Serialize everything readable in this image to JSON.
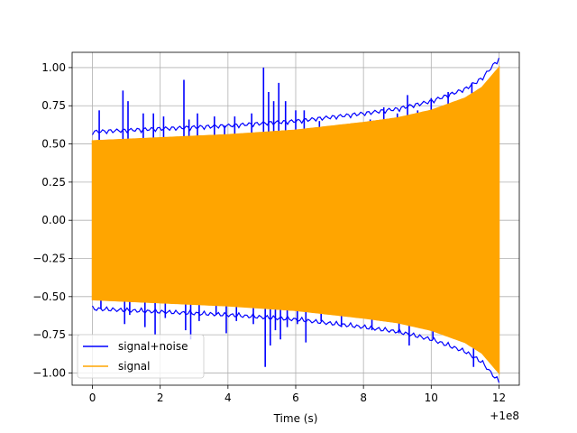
{
  "chart_data": {
    "type": "line",
    "title": "",
    "xlabel": "Time (s)",
    "ylabel": "",
    "x_offset_label": "+1e8",
    "xlim": [
      -0.6,
      12.6
    ],
    "ylim": [
      -1.08,
      1.1
    ],
    "x_ticks": [
      0,
      2,
      4,
      6,
      8,
      10,
      12
    ],
    "x_tick_labels": [
      "0",
      "2",
      "4",
      "6",
      "8",
      "10",
      "12"
    ],
    "y_ticks": [
      -1.0,
      -0.75,
      -0.5,
      -0.25,
      0.0,
      0.25,
      0.5,
      0.75,
      1.0
    ],
    "y_tick_labels": [
      "−1.00",
      "−0.75",
      "−0.50",
      "−0.25",
      "0.00",
      "0.25",
      "0.50",
      "0.75",
      "1.00"
    ],
    "grid": true,
    "legend_position": "lower-left",
    "series": [
      {
        "name": "signal+noise",
        "color": "#0000ff",
        "x_range": [
          0,
          12
        ],
        "y_range": [
          -0.96,
          1.0
        ],
        "description": "oscillating signal with noise spikes"
      },
      {
        "name": "signal",
        "color": "#ffa500",
        "x_range": [
          0,
          12
        ],
        "envelope": {
          "x": [
            0,
            2,
            4,
            6,
            8,
            9,
            10,
            11,
            11.5,
            12
          ],
          "amplitude": [
            0.52,
            0.54,
            0.56,
            0.59,
            0.64,
            0.67,
            0.72,
            0.8,
            0.87,
            1.0
          ]
        }
      }
    ],
    "noise_spikes": {
      "x": [
        0.2,
        0.9,
        1.05,
        1.5,
        1.8,
        2.1,
        2.7,
        2.85,
        3.1,
        3.6,
        3.9,
        4.2,
        4.7,
        5.05,
        5.2,
        5.35,
        5.5,
        5.7,
        6.0,
        6.25,
        6.7,
        7.3,
        7.6,
        8.2,
        8.6,
        9.0,
        9.3,
        9.6,
        10.0,
        10.5,
        11.2
      ],
      "y": [
        0.72,
        0.85,
        0.78,
        0.7,
        0.7,
        0.68,
        0.92,
        0.66,
        0.7,
        0.68,
        0.62,
        0.68,
        0.7,
        1.0,
        0.84,
        0.78,
        0.9,
        0.78,
        0.72,
        0.72,
        0.65,
        0.58,
        0.62,
        0.66,
        0.74,
        0.7,
        0.82,
        0.72,
        0.8,
        0.84,
        0.9
      ],
      "y_low": [
        -0.58,
        -0.68,
        -0.62,
        -0.7,
        -0.75,
        -0.64,
        -0.72,
        -0.78,
        -0.66,
        -0.62,
        -0.74,
        -0.66,
        -0.68,
        -0.96,
        -0.82,
        -0.72,
        -0.78,
        -0.7,
        -0.68,
        -0.8,
        -0.66,
        -0.7,
        -0.62,
        -0.72,
        -0.66,
        -0.74,
        -0.82,
        -0.7,
        -0.78,
        -0.74,
        -0.96
      ]
    }
  }
}
